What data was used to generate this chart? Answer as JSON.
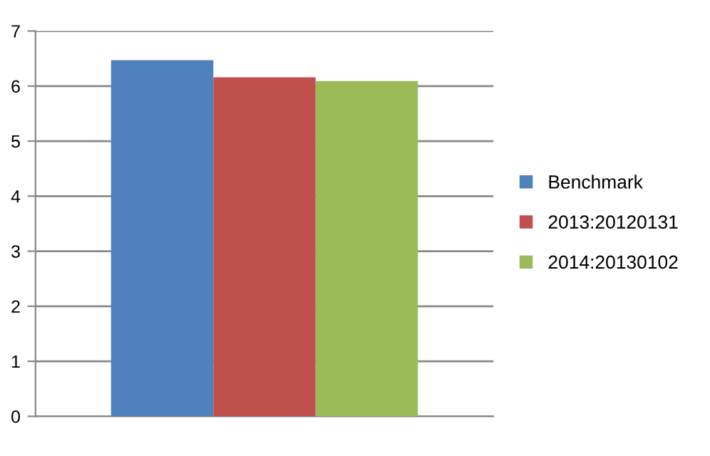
{
  "chart_data": {
    "type": "bar",
    "categories": [
      null
    ],
    "series": [
      {
        "name": "Benchmark",
        "color": "#4f81bd",
        "values": [
          6.47
        ]
      },
      {
        "name": "2013:20120131",
        "color": "#c0504d",
        "values": [
          6.16
        ]
      },
      {
        "name": "2014:20130102",
        "color": "#9bbb59",
        "values": [
          6.09
        ]
      }
    ],
    "ylim": [
      0,
      7
    ],
    "yticks": [
      0,
      1,
      2,
      3,
      4,
      5,
      6,
      7
    ],
    "grid": "y",
    "legend": "right"
  }
}
